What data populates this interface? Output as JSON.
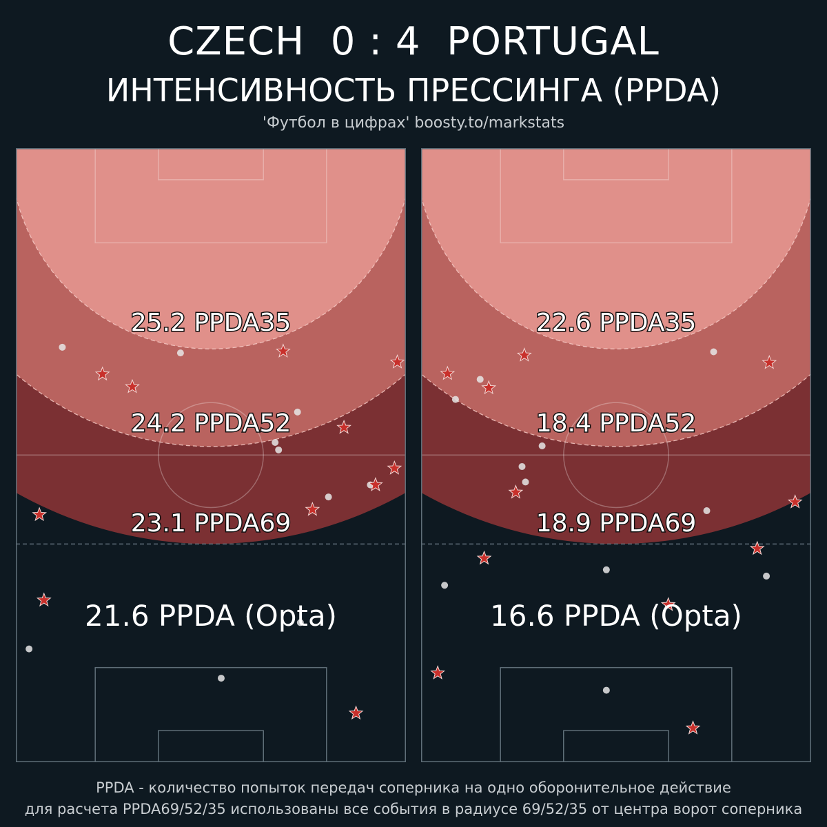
{
  "header": {
    "title": "CZECH  0 : 4  PORTUGAL",
    "subtitle": "ИНТЕНСИВНОСТЬ ПРЕССИНГА (PPDA)",
    "credit": "'Футбол в цифрах' boosty.to/markstats"
  },
  "footer": {
    "line1": "PPDA - количество попыток передач соперника на одно оборонительное действие",
    "line2": "для расчета PPDA69/52/35 использованы все события в радиусе 69/52/35 от центра ворот соперника"
  },
  "colors": {
    "background": "#0e1921",
    "zone35": "#e0908a",
    "zone52": "#b9635f",
    "zone69": "#7b3033",
    "star": "#c8302b",
    "dot": "#e6e6e6"
  },
  "chart_data": [
    {
      "type": "scatter",
      "panel": "left",
      "ppda_labels": {
        "ppda35": "25.2 PPDA35",
        "ppda52": "24.2 PPDA52",
        "ppda69": "23.1 PPDA69",
        "opta": "21.6 PPDA (Opta)"
      },
      "ppda_values": {
        "ppda35": 25.2,
        "ppda52": 24.2,
        "ppda69": 23.1,
        "opta": 21.6
      },
      "stars": [
        {
          "x": 59.3,
          "y": 98.5
        },
        {
          "x": 4.9,
          "y": 78.8
        },
        {
          "x": 4.1,
          "y": 63.9
        },
        {
          "x": 51.7,
          "y": 63.0
        },
        {
          "x": 62.7,
          "y": 58.7
        },
        {
          "x": 66.0,
          "y": 55.8
        },
        {
          "x": 57.2,
          "y": 48.7
        },
        {
          "x": 20.3,
          "y": 41.6
        },
        {
          "x": 15.1,
          "y": 39.4
        },
        {
          "x": 46.6,
          "y": 35.4
        },
        {
          "x": 66.5,
          "y": 37.3
        }
      ],
      "dots": [
        {
          "x": 2.3,
          "y": 87.3
        },
        {
          "x": 35.8,
          "y": 92.4
        },
        {
          "x": 49.6,
          "y": 82.7
        },
        {
          "x": 54.5,
          "y": 60.8
        },
        {
          "x": 61.8,
          "y": 58.7
        },
        {
          "x": 45.8,
          "y": 52.6
        },
        {
          "x": 45.2,
          "y": 51.3
        },
        {
          "x": 49.1,
          "y": 46.0
        },
        {
          "x": 8.1,
          "y": 34.7
        },
        {
          "x": 28.7,
          "y": 35.7
        }
      ]
    },
    {
      "type": "scatter",
      "panel": "right",
      "ppda_labels": {
        "ppda35": "22.6 PPDA35",
        "ppda52": "18.4 PPDA52",
        "ppda69": "18.9 PPDA69",
        "opta": "16.6 PPDA (Opta)"
      },
      "ppda_values": {
        "ppda35": 22.6,
        "ppda52": 18.4,
        "ppda69": 18.9,
        "opta": 16.6
      },
      "stars": [
        {
          "x": 47.4,
          "y": 101.1
        },
        {
          "x": 2.9,
          "y": 91.5
        },
        {
          "x": 43.1,
          "y": 79.6
        },
        {
          "x": 11.0,
          "y": 71.5
        },
        {
          "x": 58.6,
          "y": 69.8
        },
        {
          "x": 65.2,
          "y": 61.7
        },
        {
          "x": 16.5,
          "y": 60.0
        },
        {
          "x": 11.8,
          "y": 41.8
        },
        {
          "x": 4.6,
          "y": 39.3
        },
        {
          "x": 18.0,
          "y": 36.1
        },
        {
          "x": 60.7,
          "y": 37.4
        }
      ],
      "dots": [
        {
          "x": 32.3,
          "y": 94.5
        },
        {
          "x": 4.1,
          "y": 76.2
        },
        {
          "x": 32.3,
          "y": 73.5
        },
        {
          "x": 60.2,
          "y": 74.6
        },
        {
          "x": 49.8,
          "y": 63.2
        },
        {
          "x": 18.2,
          "y": 58.2
        },
        {
          "x": 17.6,
          "y": 55.5
        },
        {
          "x": 21.1,
          "y": 51.9
        },
        {
          "x": 6.0,
          "y": 43.8
        },
        {
          "x": 10.3,
          "y": 40.3
        },
        {
          "x": 51.0,
          "y": 35.5
        }
      ]
    }
  ]
}
